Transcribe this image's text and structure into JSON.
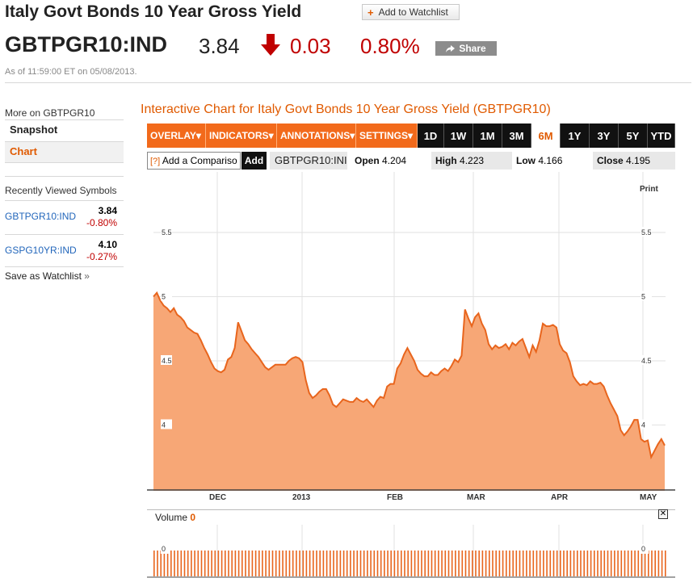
{
  "header": {
    "title": "Italy Govt Bonds 10 Year Gross Yield",
    "watchlist_label": "Add to Watchlist",
    "ticker": "GBTPGR10:IND",
    "price": "3.84",
    "change": "0.03",
    "change_pct": "0.80%",
    "share_label": "Share",
    "as_of": "As of 11:59:00 ET on 05/08/2013."
  },
  "sidebar": {
    "more_on": "More on GBTPGR10",
    "items": [
      {
        "label": "Snapshot"
      },
      {
        "label": "Chart"
      }
    ],
    "recent_title": "Recently Viewed Symbols",
    "recent": [
      {
        "symbol": "GBTPGR10:IND",
        "value": "3.84",
        "change": "-0.80%"
      },
      {
        "symbol": "GSPG10YR:IND",
        "value": "4.10",
        "change": "-0.27%"
      }
    ],
    "save_watchlist": "Save as Watchlist"
  },
  "chart_panel": {
    "title": "Interactive Chart for Italy Govt Bonds 10 Year Gross Yield (GBTPGR10)",
    "menus": [
      "OVERLAY",
      "INDICATORS",
      "ANNOTATIONS",
      "SETTINGS"
    ],
    "ranges": [
      "1D",
      "1W",
      "1M",
      "3M",
      "6M",
      "1Y",
      "3Y",
      "5Y",
      "YTD"
    ],
    "active_range": "6M",
    "compare_placeholder": "Add a Compariso",
    "compare_help": "[?]",
    "add_label": "Add",
    "symbol": "GBTPGR10:INI",
    "stats": {
      "open_label": "Open",
      "open": "4.204",
      "high_label": "High",
      "high": "4.223",
      "low_label": "Low",
      "low": "4.166",
      "close_label": "Close",
      "close": "4.195"
    },
    "print_label": "Print",
    "volume_label": "Volume",
    "volume_value": "0",
    "volume_tick": "0",
    "close_icon": "x-icon"
  },
  "colors": {
    "accent": "#e05a00",
    "toolbar_orange": "#f26a1b",
    "area_fill": "#f7a776",
    "line": "#e8651d",
    "negative": "#c00000"
  },
  "chart_data": {
    "type": "area",
    "title": "",
    "xlabel": "",
    "ylabel": "",
    "ylim": [
      3.5,
      5.5
    ],
    "yticks": [
      4,
      4.5,
      5,
      5.5
    ],
    "ytick_labels": [
      "4",
      "4.5",
      "5",
      "5.5"
    ],
    "xticks": [
      "DEC",
      "2013",
      "FEB",
      "MAR",
      "APR",
      "MAY"
    ],
    "grid": true,
    "series": [
      {
        "values": [
          5.0,
          5.03,
          4.97,
          4.93,
          4.91,
          4.88,
          4.91,
          4.86,
          4.84,
          4.81,
          4.76,
          4.74,
          4.72,
          4.71,
          4.66,
          4.6,
          4.55,
          4.49,
          4.44,
          4.42,
          4.41,
          4.43,
          4.51,
          4.53,
          4.6,
          4.8,
          4.73,
          4.66,
          4.63,
          4.59,
          4.56,
          4.53,
          4.49,
          4.45,
          4.43,
          4.45,
          4.47,
          4.47,
          4.47,
          4.47,
          4.5,
          4.52,
          4.53,
          4.52,
          4.49,
          4.35,
          4.25,
          4.21,
          4.23,
          4.26,
          4.28,
          4.28,
          4.23,
          4.16,
          4.14,
          4.17,
          4.2,
          4.19,
          4.18,
          4.18,
          4.21,
          4.19,
          4.18,
          4.2,
          4.17,
          4.14,
          4.19,
          4.22,
          4.21,
          4.3,
          4.32,
          4.32,
          4.44,
          4.48,
          4.55,
          4.6,
          4.55,
          4.5,
          4.43,
          4.4,
          4.38,
          4.38,
          4.41,
          4.39,
          4.39,
          4.42,
          4.44,
          4.42,
          4.46,
          4.51,
          4.49,
          4.54,
          4.9,
          4.83,
          4.77,
          4.84,
          4.87,
          4.79,
          4.74,
          4.63,
          4.59,
          4.62,
          4.6,
          4.61,
          4.63,
          4.59,
          4.64,
          4.62,
          4.65,
          4.67,
          4.6,
          4.53,
          4.62,
          4.57,
          4.66,
          4.79,
          4.77,
          4.77,
          4.78,
          4.76,
          4.63,
          4.58,
          4.56,
          4.49,
          4.38,
          4.34,
          4.31,
          4.32,
          4.31,
          4.34,
          4.32,
          4.32,
          4.33,
          4.3,
          4.23,
          4.17,
          4.12,
          4.07,
          3.96,
          3.92,
          3.95,
          3.99,
          4.04,
          4.04,
          3.89,
          3.87,
          3.88,
          3.75,
          3.8,
          3.85,
          3.89,
          3.84
        ]
      }
    ],
    "volume": {
      "values": "0",
      "ylabel_tick": "0"
    }
  }
}
